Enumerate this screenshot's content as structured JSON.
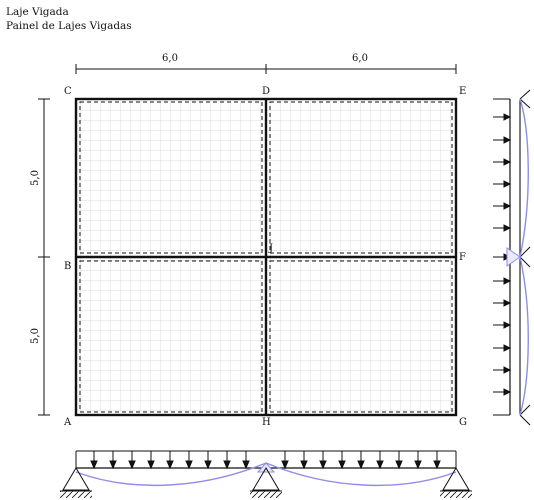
{
  "header": {
    "title": "Laje Vigada",
    "subtitle": "Painel de Lajes Vigadas"
  },
  "dimensions": {
    "top_left": "6,0",
    "top_right": "6,0",
    "left_top": "5,0",
    "left_bottom": "5,0"
  },
  "nodes": {
    "C": "C",
    "D": "D",
    "E": "E",
    "B": "B",
    "J": "J",
    "F": "F",
    "A": "A",
    "H": "H",
    "G": "G"
  },
  "colors": {
    "grid": "#c8c8c8",
    "outline": "#111111",
    "diagram": "#8f8ee6"
  }
}
